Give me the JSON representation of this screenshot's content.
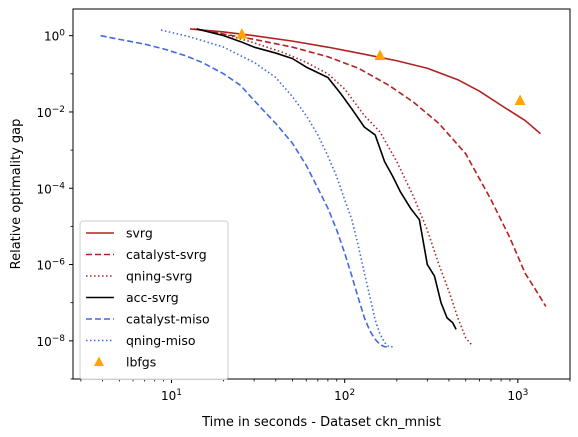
{
  "chart_data": {
    "type": "line",
    "xlabel": "Time in seconds - Dataset ckn_mnist",
    "ylabel": "Relative optimality gap",
    "xscale": "log",
    "yscale": "log",
    "xlim": [
      2.7,
      2000
    ],
    "ylim": [
      1e-09,
      5
    ],
    "x_ticks": [
      {
        "value": 10,
        "base": "10",
        "exp": "1"
      },
      {
        "value": 100,
        "base": "10",
        "exp": "2"
      },
      {
        "value": 1000,
        "base": "10",
        "exp": "3"
      }
    ],
    "y_ticks": [
      {
        "value": 1,
        "base": "10",
        "exp": "0"
      },
      {
        "value": 0.01,
        "base": "10",
        "exp": "−2"
      },
      {
        "value": 0.0001,
        "base": "10",
        "exp": "−4"
      },
      {
        "value": 1e-06,
        "base": "10",
        "exp": "−6"
      },
      {
        "value": 1e-08,
        "base": "10",
        "exp": "−8"
      }
    ],
    "grid": false,
    "legend_position": "lower-left",
    "series": [
      {
        "name": "svrg",
        "color": "#b22222",
        "dash": "solid",
        "marker": "none",
        "x": [
          12.8,
          20,
          30,
          50,
          80,
          120,
          200,
          300,
          450,
          600,
          800,
          1100,
          1350
        ],
        "y": [
          1.5,
          1.25,
          1.0,
          0.72,
          0.5,
          0.35,
          0.22,
          0.14,
          0.07,
          0.035,
          0.015,
          0.006,
          0.0027
        ]
      },
      {
        "name": "catalyst-svrg",
        "color": "#b22222",
        "dash": "dashed",
        "marker": "none",
        "x": [
          13.5,
          20,
          30,
          50,
          80,
          120,
          180,
          250,
          350,
          500,
          700,
          900,
          1100,
          1300,
          1450
        ],
        "y": [
          1.5,
          1.1,
          0.8,
          0.5,
          0.28,
          0.14,
          0.05,
          0.018,
          0.005,
          0.0008,
          5e-05,
          5e-06,
          6e-07,
          1.8e-07,
          8e-08
        ]
      },
      {
        "name": "qning-svrg",
        "color": "#b22222",
        "dash": "dotted",
        "marker": "none",
        "x": [
          14,
          20,
          30,
          45,
          60,
          80,
          100,
          130,
          160,
          200,
          250,
          300,
          350,
          400,
          450,
          500,
          540
        ],
        "y": [
          1.5,
          1.1,
          0.65,
          0.35,
          0.2,
          0.1,
          0.04,
          0.008,
          0.003,
          0.0005,
          6e-05,
          8e-06,
          1e-06,
          2e-07,
          4e-08,
          1.2e-08,
          8e-09
        ]
      },
      {
        "name": "acc-svrg",
        "color": "#000000",
        "dash": "solid",
        "marker": "none",
        "x": [
          14,
          20,
          25,
          30,
          40,
          50,
          60,
          80,
          95,
          110,
          130,
          150,
          170,
          190,
          210,
          240,
          270,
          300,
          330,
          360,
          390,
          420,
          440
        ],
        "y": [
          1.5,
          1.0,
          0.7,
          0.5,
          0.35,
          0.25,
          0.15,
          0.08,
          0.03,
          0.012,
          0.004,
          0.0025,
          0.0005,
          0.0002,
          8e-05,
          3e-05,
          1.5e-05,
          1e-06,
          5e-07,
          1e-07,
          4e-08,
          3e-08,
          2e-08
        ]
      },
      {
        "name": "catalyst-miso",
        "color": "#4169e1",
        "dash": "dashed",
        "marker": "none",
        "x": [
          3.9,
          5,
          7,
          9,
          12,
          15,
          20,
          25,
          30,
          40,
          50,
          60,
          70,
          80,
          90,
          100,
          110,
          120,
          130,
          140,
          150,
          160,
          170,
          180
        ],
        "y": [
          1.0,
          0.8,
          0.6,
          0.45,
          0.3,
          0.2,
          0.1,
          0.05,
          0.02,
          0.005,
          0.0015,
          0.0004,
          0.0001,
          3e-05,
          8e-06,
          2e-06,
          5e-07,
          1.3e-07,
          4e-08,
          1.8e-08,
          1.1e-08,
          8e-09,
          7e-09,
          7e-09
        ]
      },
      {
        "name": "qning-miso",
        "color": "#4169e1",
        "dash": "dotted",
        "marker": "none",
        "x": [
          8.7,
          12,
          15,
          20,
          25,
          30,
          40,
          50,
          60,
          70,
          80,
          90,
          100,
          110,
          120,
          130,
          140,
          150,
          160,
          170,
          180,
          190
        ],
        "y": [
          1.4,
          1.0,
          0.75,
          0.5,
          0.3,
          0.2,
          0.08,
          0.025,
          0.008,
          0.0025,
          0.0007,
          0.0002,
          5e-05,
          1.5e-05,
          3e-06,
          6e-07,
          1.4e-07,
          3.5e-08,
          1.5e-08,
          9e-09,
          7e-09,
          7e-09
        ]
      },
      {
        "name": "lbfgs",
        "color": "#ffa500",
        "dash": "none",
        "marker": "triangle",
        "x": [
          25.5,
          160,
          1030
        ],
        "y": [
          1.1,
          0.3,
          0.02
        ]
      }
    ]
  }
}
